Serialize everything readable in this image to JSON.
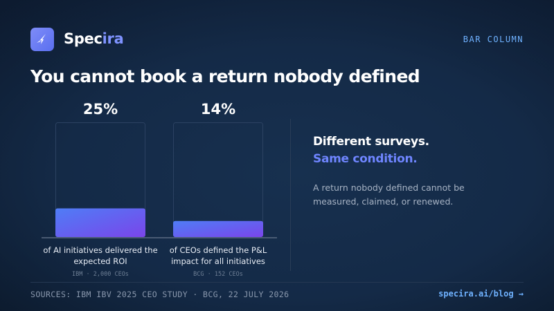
{
  "brand": {
    "name_start": "Spec",
    "name_accent": "ira"
  },
  "tag": "BAR COLUMN",
  "headline": "You cannot book a return nobody defined",
  "chart_data": {
    "type": "bar",
    "categories": [
      "of AI initiatives delivered the expected ROI",
      "of CEOs defined the P&L impact for all initiatives"
    ],
    "values": [
      25,
      14
    ],
    "value_labels": [
      "25%",
      "14%"
    ],
    "sources": [
      "IBM · 2,000 CEOs",
      "BCG · 152 CEOs"
    ],
    "ylim": [
      0,
      100
    ]
  },
  "side": {
    "line1": "Different surveys.",
    "line2": "Same condition.",
    "body": "A return nobody defined cannot be measured, claimed, or renewed."
  },
  "footer": {
    "sources": "SOURCES: IBM IBV 2025 CEO STUDY · BCG, 22 JULY 2026",
    "link": "specira.ai/blog →"
  },
  "colors": {
    "bar_start": "#4f7df6",
    "bar_end": "#7a45ea",
    "accent": "#6f85ff",
    "link": "#6fb2ff"
  }
}
